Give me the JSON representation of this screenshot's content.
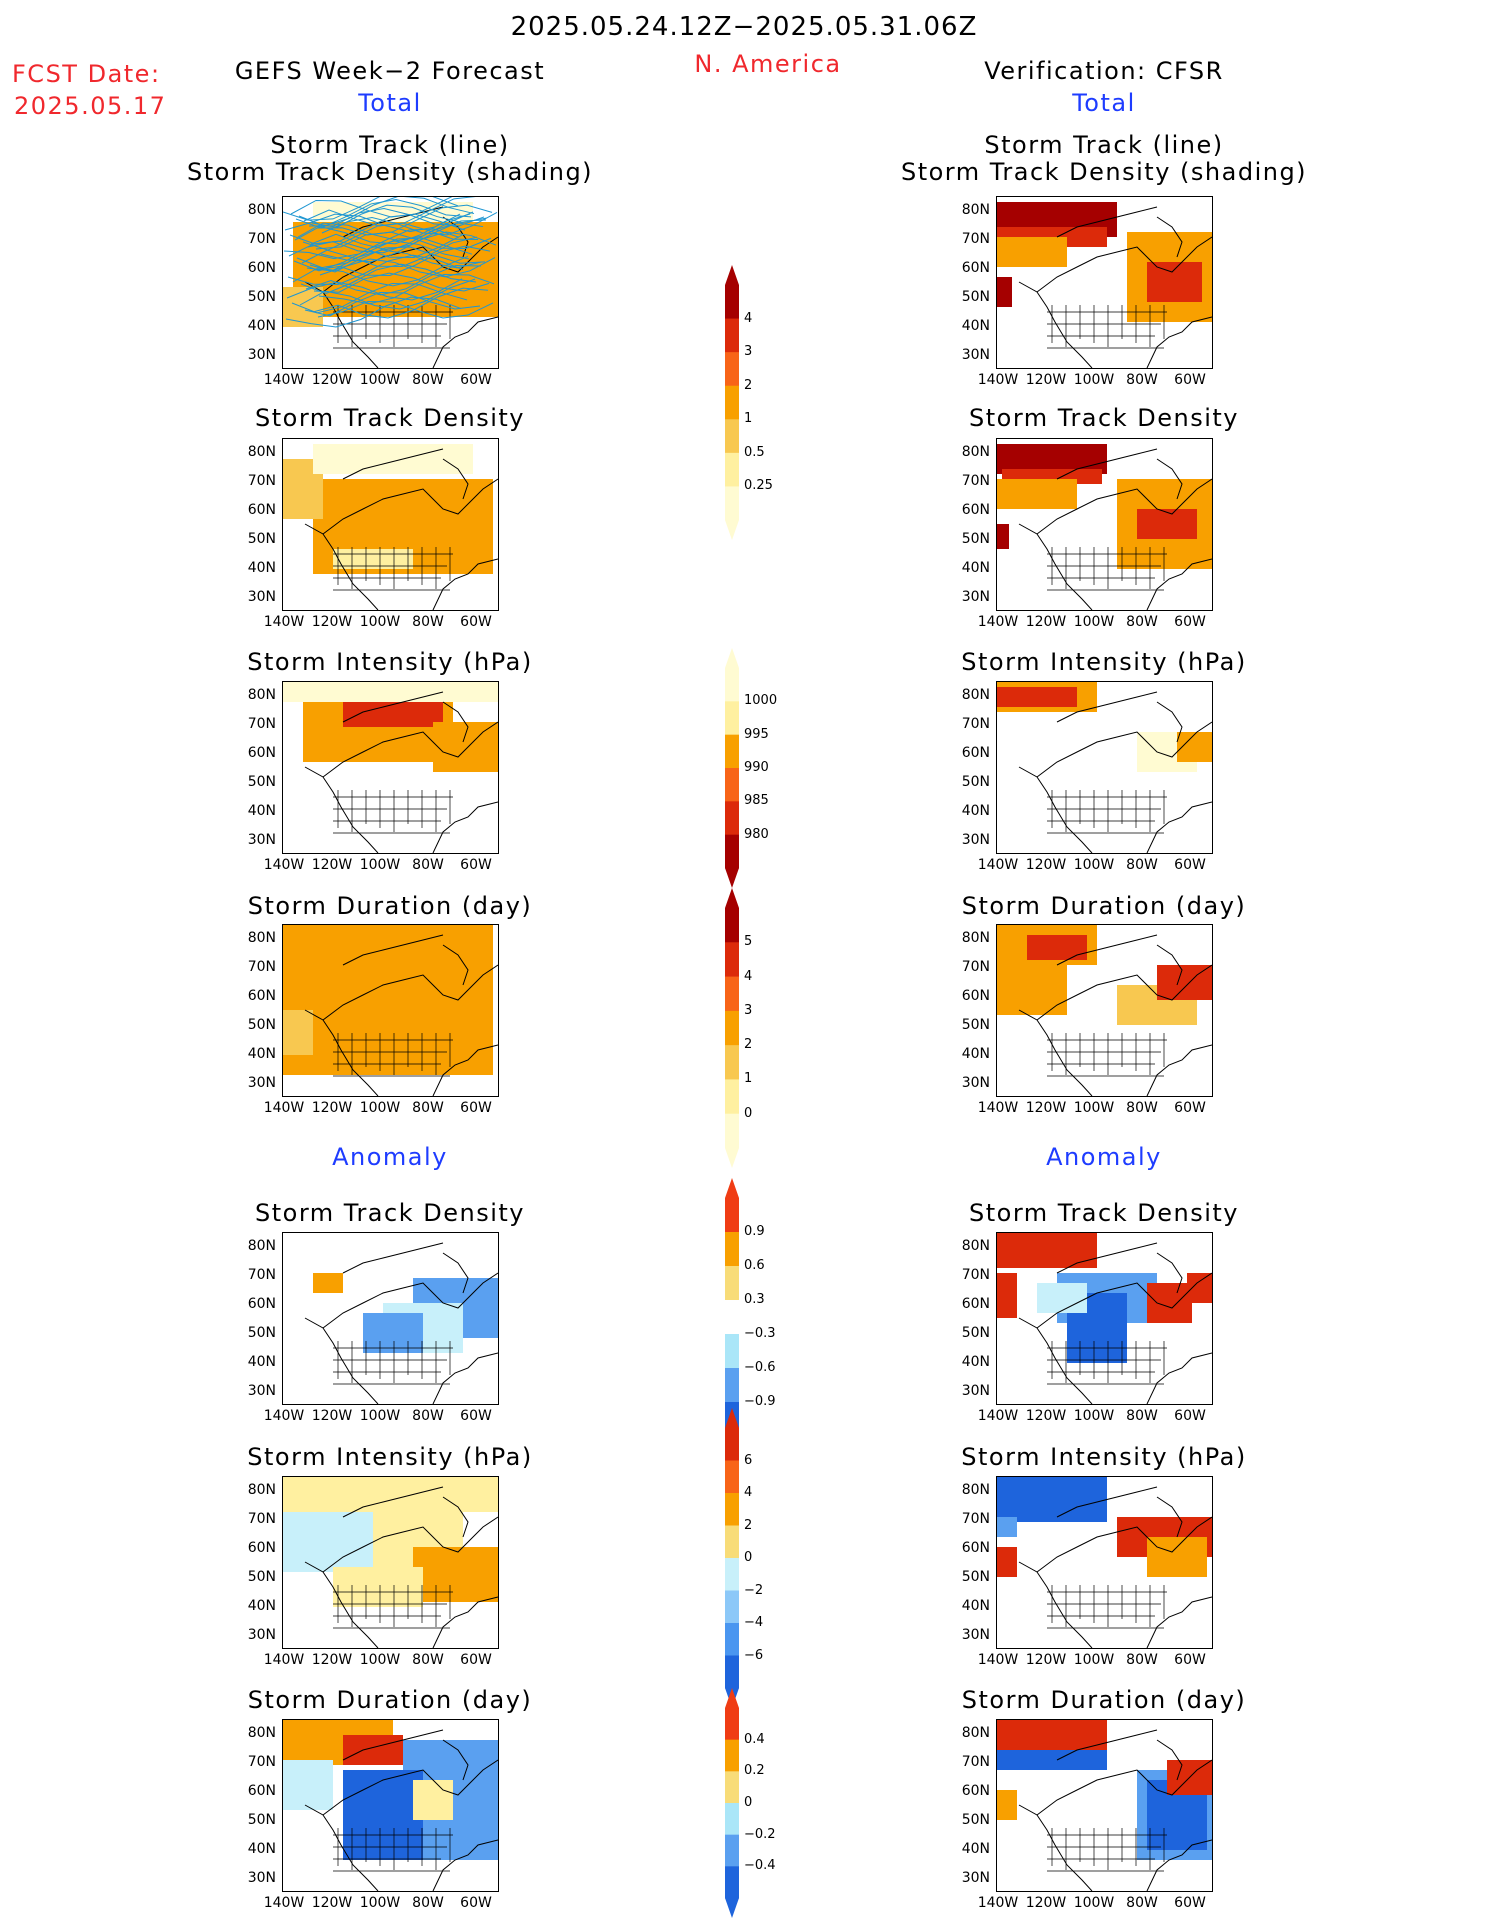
{
  "header": {
    "period": "2025.05.24.12Z−2025.05.31.06Z",
    "fcst_label": "FCST Date:",
    "fcst_date": "2025.05.17",
    "model": "GEFS Week−2 Forecast",
    "region": "N. America",
    "verification": "Verification: CFSR"
  },
  "sections": {
    "total": "Total",
    "anomaly": "Anomaly"
  },
  "panel_titles": [
    [
      "Storm Track (line)",
      "Storm Track Density (shading)"
    ],
    [
      "Storm Track Density"
    ],
    [
      "Storm Intensity (hPa)"
    ],
    [
      "Storm Duration (day)"
    ],
    [
      "Storm Track Density"
    ],
    [
      "Storm Intensity (hPa)"
    ],
    [
      "Storm Duration (day)"
    ]
  ],
  "axis": {
    "lat_labels": [
      "80N",
      "70N",
      "60N",
      "50N",
      "40N",
      "30N"
    ],
    "lon_labels": [
      "140W",
      "120W",
      "100W",
      "80W",
      "60W"
    ]
  },
  "colorbars": [
    {
      "name": "track-density",
      "labels": [
        "4",
        "3",
        "2",
        "1",
        "0.5",
        "0.25"
      ],
      "colors": [
        "#a50000",
        "#dc2a0a",
        "#f86418",
        "#f8a000",
        "#f8c850",
        "#fff0a0",
        "#fffbd2"
      ]
    },
    {
      "name": "intensity",
      "labels": [
        "1000",
        "995",
        "990",
        "985",
        "980"
      ],
      "colors": [
        "#fffbd2",
        "#fff0a0",
        "#f8a000",
        "#f86418",
        "#dc2a0a",
        "#a50000"
      ]
    },
    {
      "name": "duration",
      "labels": [
        "5",
        "4",
        "3",
        "2",
        "1",
        "0"
      ],
      "colors": [
        "#a50000",
        "#dc2a0a",
        "#f86418",
        "#f8a000",
        "#f8c850",
        "#fff0a0",
        "#fffbd2"
      ]
    },
    {
      "name": "density-anomaly",
      "labels": [
        "0.9",
        "0.6",
        "0.3",
        "−0.3",
        "−0.6",
        "−0.9"
      ],
      "colors": [
        "#f03c14",
        "#f8a000",
        "#f8dc78",
        "#ffffff",
        "#aae6f8",
        "#5aa0f0",
        "#1e64dc"
      ]
    },
    {
      "name": "intensity-anomaly",
      "labels": [
        "6",
        "4",
        "2",
        "0",
        "−2",
        "−4",
        "−6"
      ],
      "colors": [
        "#dc2a0a",
        "#f86418",
        "#f8a000",
        "#f8dc78",
        "#c8f0fa",
        "#8cc8f8",
        "#4a96f0",
        "#1e64dc"
      ]
    },
    {
      "name": "duration-anomaly",
      "labels": [
        "0.4",
        "0.2",
        "0",
        "−0.2",
        "−0.4"
      ],
      "colors": [
        "#f03c14",
        "#f8a000",
        "#f8dc78",
        "#aae6f8",
        "#5aa0f0",
        "#1e64dc"
      ]
    }
  ],
  "palette": {
    "land_outline": "#000000",
    "track_line": "#1e96d2",
    "text_red": "#f0282d",
    "text_blue": "#1e3cff"
  }
}
